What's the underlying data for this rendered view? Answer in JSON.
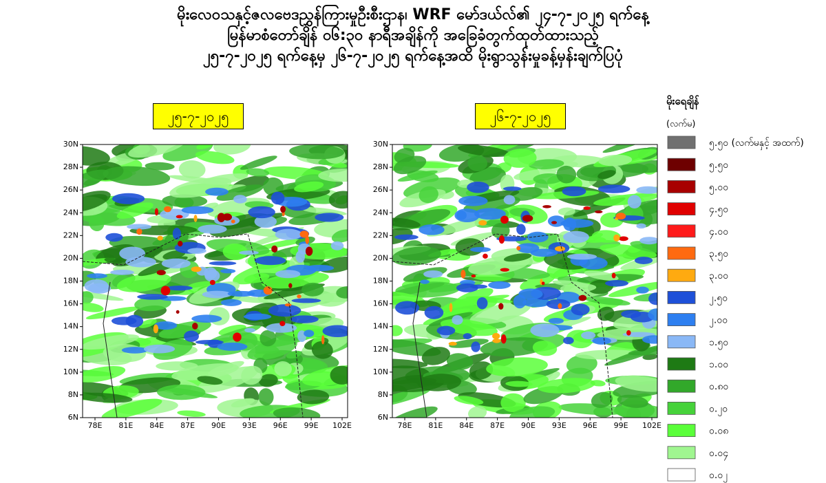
{
  "header": {
    "lines": [
      "မိုးလေဝသနှင့်ဇလဗေဒညွှန်ကြားမှုဦးစီးဌာန၊ WRF မော်ဒယ်လ်၏ ၂၄-၇-၂၀၂၅ ရက်နေ့",
      "မြန်မာစံတော်ချိန် ၀၆:၃၀ နာရီအချိန်ကို အခြေခံတွက်ထုတ်ထားသည့်",
      "၂၅-၇-၂၀၂၅ ရက်နေ့မှ ၂၆-၇-၂၀၂၅ ရက်နေ့အထိ မိုးရွာသွန်းမှုခန့်မှန်းချက်ပြပုံ"
    ]
  },
  "maps": [
    {
      "label": "၂၅-၇-၂၀၂၅"
    },
    {
      "label": "၂၆-၇-၂၀၂၅"
    }
  ],
  "axes": {
    "xticks": [
      "78E",
      "81E",
      "84E",
      "87E",
      "90E",
      "93E",
      "96E",
      "99E",
      "102E"
    ],
    "yticks": [
      "30N",
      "28N",
      "26N",
      "24N",
      "22N",
      "20N",
      "18N",
      "16N",
      "14N",
      "12N",
      "10N",
      "8N",
      "6N"
    ]
  },
  "legend": {
    "title": "မိုးရေချိန်",
    "unit": "(လက်မ)",
    "items": [
      {
        "label": "၅.၅၀ (လက်မနှင့် အထက်)",
        "color": "#707070"
      },
      {
        "label": "၅.၅၀",
        "color": "#6e0000"
      },
      {
        "label": "၅.၀၀",
        "color": "#a80000"
      },
      {
        "label": "၄.၅၀",
        "color": "#e00000"
      },
      {
        "label": "၄.၀၀",
        "color": "#ff1a1a"
      },
      {
        "label": "၃.၅၀",
        "color": "#ff6a10"
      },
      {
        "label": "၃.၀၀",
        "color": "#ffaa10"
      },
      {
        "label": "၂.၅၀",
        "color": "#1e50d8"
      },
      {
        "label": "၂.၀၀",
        "color": "#2e7ff0"
      },
      {
        "label": "၁.၅၀",
        "color": "#8ab8f6"
      },
      {
        "label": "၁.၀၀",
        "color": "#1e7a14"
      },
      {
        "label": "၀.၈၀",
        "color": "#32a82a"
      },
      {
        "label": "၀.၂၀",
        "color": "#46d23a"
      },
      {
        "label": "၀.၀၈",
        "color": "#5aff3a"
      },
      {
        "label": "၀.၀၄",
        "color": "#a0f690"
      },
      {
        "label": "၀.၀၂",
        "color": "#ffffff"
      }
    ]
  }
}
